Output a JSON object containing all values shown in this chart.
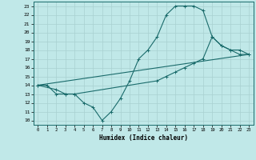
{
  "title": "",
  "xlabel": "Humidex (Indice chaleur)",
  "bg_color": "#c0e8e8",
  "line_color": "#1a6b6b",
  "grid_color": "#a8d0d0",
  "xlim": [
    -0.5,
    23.5
  ],
  "ylim": [
    9.5,
    23.5
  ],
  "xticks": [
    0,
    1,
    2,
    3,
    4,
    5,
    6,
    7,
    8,
    9,
    10,
    11,
    12,
    13,
    14,
    15,
    16,
    17,
    18,
    19,
    20,
    21,
    22,
    23
  ],
  "yticks": [
    10,
    11,
    12,
    13,
    14,
    15,
    16,
    17,
    18,
    19,
    20,
    21,
    22,
    23
  ],
  "line1_x": [
    0,
    1,
    2,
    3,
    4,
    5,
    6,
    7,
    8,
    9,
    10,
    11,
    12,
    13,
    14,
    15,
    16,
    17,
    18,
    19,
    20,
    21,
    22,
    23
  ],
  "line1_y": [
    14,
    14,
    13,
    13,
    13,
    12,
    11.5,
    10,
    11,
    12.5,
    14.5,
    17,
    18,
    19.5,
    22,
    23,
    23,
    23,
    22.5,
    19.5,
    18.5,
    18,
    17.5,
    17.5
  ],
  "line2_x": [
    0,
    2,
    3,
    4,
    13,
    14,
    15,
    16,
    17,
    18,
    19,
    20,
    21,
    22,
    23
  ],
  "line2_y": [
    14,
    13.5,
    13,
    13,
    14.5,
    15,
    15.5,
    16,
    16.5,
    17,
    19.5,
    18.5,
    18,
    18,
    17.5
  ],
  "line3_x": [
    0,
    23
  ],
  "line3_y": [
    14,
    17.5
  ]
}
